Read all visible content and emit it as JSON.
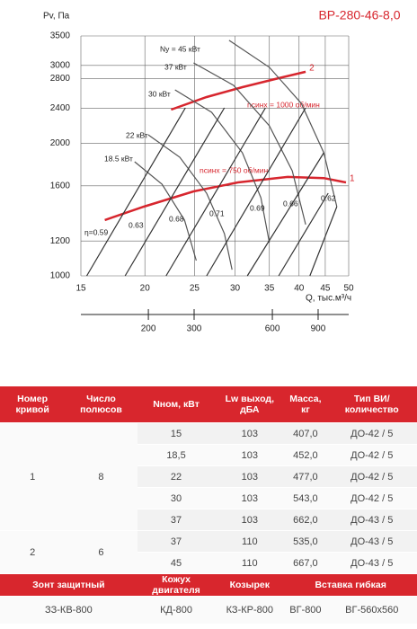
{
  "chart_data": {
    "type": "line",
    "title": "ВР-280-46-8,0",
    "y_label": "Pv, Па",
    "x_label": "Q, тыс.м³/ч",
    "xlim": [
      15,
      50
    ],
    "xticks": [
      15,
      20,
      25,
      30,
      35,
      40,
      45,
      50
    ],
    "ylim": [
      1000,
      3500
    ],
    "yticks": [
      1000,
      1200,
      1600,
      2000,
      2400,
      2800,
      3000,
      3500
    ],
    "x2lim": [
      110,
      1180
    ],
    "x2ticks": [
      200,
      300,
      600,
      900
    ],
    "log_scale": true,
    "grid": true,
    "series": [
      {
        "name": "nсинх = 750 об/мин",
        "end_label": "1",
        "color": "#d7262e",
        "x": [
          16.7,
          19.9,
          24.9,
          30.4,
          38.0,
          44.7,
          49.4
        ],
        "values": [
          1338,
          1435,
          1554,
          1629,
          1676,
          1666,
          1629
        ]
      },
      {
        "name": "nсинх = 1000 об/мин",
        "end_label": "2",
        "color": "#d7262e",
        "x": [
          22.5,
          26.4,
          31.0,
          36.5,
          41.2
        ],
        "values": [
          2382,
          2544,
          2679,
          2808,
          2902
        ]
      },
      {
        "name": "Ny = 45 кВт",
        "color": "#555555",
        "x": [
          29.2,
          35.0,
          40.4,
          44.7,
          47.4
        ],
        "values": [
          3420,
          2971,
          2462,
          1902,
          1435
        ]
      },
      {
        "name": "37 кВт",
        "color": "#555555",
        "x": [
          24.9,
          29.8,
          35.0,
          38.8,
          41.2
        ],
        "values": [
          3041,
          2704,
          2189,
          1731,
          1307
        ]
      },
      {
        "name": "30 кВт",
        "color": "#555555",
        "x": [
          22.9,
          27.0,
          31.0,
          33.7,
          35.0
        ],
        "values": [
          2641,
          2349,
          1902,
          1504,
          1190
        ]
      },
      {
        "name": "22 кВт",
        "color": "#555555",
        "x": [
          20.3,
          23.4,
          26.4,
          28.6,
          29.6
        ],
        "values": [
          2089,
          1858,
          1540,
          1247,
          1033
        ]
      },
      {
        "name": "18.5 кВт",
        "color": "#555555",
        "x": [
          19.1,
          21.6,
          23.9,
          25.2
        ],
        "values": [
          1815,
          1614,
          1338,
          1083
        ]
      },
      {
        "name": "η=0.59",
        "color": "#333333",
        "x": [
          15.4,
          24.0
        ],
        "values": [
          1000,
          2405
        ]
      },
      {
        "name": "0.63",
        "color": "#333333",
        "x": [
          18.3,
          28.6
        ],
        "values": [
          1000,
          2405
        ]
      },
      {
        "name": "0.68",
        "color": "#333333",
        "x": [
          22.0,
          34.4
        ],
        "values": [
          1000,
          2405
        ]
      },
      {
        "name": "0.71",
        "color": "#333333",
        "x": [
          26.4,
          41.2
        ],
        "values": [
          1000,
          2405
        ]
      },
      {
        "name": "0.69",
        "color": "#333333",
        "x": [
          31.7,
          44.7
        ],
        "values": [
          1000,
          1902
        ]
      },
      {
        "name": "0.66",
        "color": "#333333",
        "x": [
          36.5,
          45.6
        ],
        "values": [
          1000,
          1540
        ]
      },
      {
        "name": "0.62",
        "color": "#333333",
        "x": [
          42.0,
          47.4
        ],
        "values": [
          1000,
          1435
        ]
      }
    ]
  },
  "table": {
    "columns": [
      "Номер кривой",
      "Число полюсов",
      "Nном, кВт",
      "Lw выход, дБА",
      "Масса, кг",
      "Тип ВИ/ количество"
    ],
    "groups": [
      {
        "curve": "1",
        "poles": "8",
        "rows": [
          [
            "15",
            "103",
            "407,0",
            "ДО-42 / 5"
          ],
          [
            "18,5",
            "103",
            "452,0",
            "ДО-42 / 5"
          ],
          [
            "22",
            "103",
            "477,0",
            "ДО-42 / 5"
          ],
          [
            "30",
            "103",
            "543,0",
            "ДО-42 / 5"
          ],
          [
            "37",
            "103",
            "662,0",
            "ДО-43 / 5"
          ]
        ]
      },
      {
        "curve": "2",
        "poles": "6",
        "rows": [
          [
            "37",
            "110",
            "535,0",
            "ДО-43 / 5"
          ],
          [
            "45",
            "110",
            "667,0",
            "ДО-43 / 5"
          ]
        ]
      }
    ]
  },
  "footer": {
    "headers": [
      "Зонт защитный",
      "Кожух двигателя",
      "Козырек",
      "Вставка гибкая"
    ],
    "values": [
      "ЗЗ-КВ-800",
      "КД-800",
      "КЗ-КР-800",
      "ВГ-800",
      "ВГ-560х560"
    ]
  }
}
